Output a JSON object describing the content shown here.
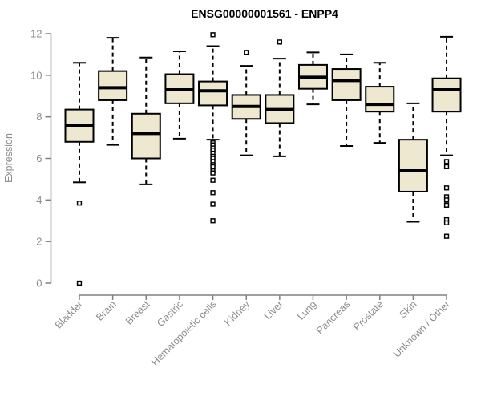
{
  "title": "ENSG00000001561 - ENPP4",
  "colors": {
    "background": "#FFFFFF",
    "box_fill": "#EDE8CF",
    "box_border": "#000000",
    "median_line": "#000000",
    "whisker": "#000000",
    "outlier_fill": "#FFFFFF",
    "outlier_border": "#000000",
    "axis": "#808080",
    "tick_label": "#8C8C8C",
    "title_color": "#000000"
  },
  "chart_data": {
    "type": "boxplot",
    "title": "ENSG00000001561 - ENPP4",
    "xlabel": "",
    "ylabel": "Expression",
    "ylim": [
      0,
      12
    ],
    "yticks": [
      0,
      2,
      4,
      6,
      8,
      10,
      12
    ],
    "grid": false,
    "legend": "none",
    "categories": [
      "Bladder",
      "Brain",
      "Breast",
      "Gastric",
      "Hematopoietic cells",
      "Kidney",
      "Liver",
      "Lung",
      "Pancreas",
      "Prostate",
      "Skin",
      "Unknown / Other"
    ],
    "boxes": [
      {
        "category": "Bladder",
        "whisker_low": 4.85,
        "q1": 6.8,
        "median": 7.6,
        "q3": 8.35,
        "whisker_high": 10.6,
        "outliers": [
          3.85,
          0.0
        ]
      },
      {
        "category": "Brain",
        "whisker_low": 6.65,
        "q1": 8.8,
        "median": 9.4,
        "q3": 10.2,
        "whisker_high": 11.8,
        "outliers": []
      },
      {
        "category": "Breast",
        "whisker_low": 4.75,
        "q1": 6.0,
        "median": 7.2,
        "q3": 8.15,
        "whisker_high": 10.85,
        "outliers": []
      },
      {
        "category": "Gastric",
        "whisker_low": 6.95,
        "q1": 8.65,
        "median": 9.3,
        "q3": 10.05,
        "whisker_high": 11.15,
        "outliers": []
      },
      {
        "category": "Hematopoietic cells",
        "whisker_low": 6.9,
        "q1": 8.55,
        "median": 9.25,
        "q3": 9.7,
        "whisker_high": 11.4,
        "outliers": [
          11.95,
          6.75,
          6.65,
          6.5,
          6.4,
          6.25,
          6.1,
          6.0,
          5.85,
          5.7,
          5.6,
          5.4,
          5.3,
          4.95,
          4.35,
          3.8,
          3.0
        ]
      },
      {
        "category": "Kidney",
        "whisker_low": 6.15,
        "q1": 7.9,
        "median": 8.5,
        "q3": 9.05,
        "whisker_high": 10.45,
        "outliers": [
          11.1
        ]
      },
      {
        "category": "Liver",
        "whisker_low": 6.1,
        "q1": 7.7,
        "median": 8.35,
        "q3": 9.05,
        "whisker_high": 10.8,
        "outliers": [
          11.6
        ]
      },
      {
        "category": "Lung",
        "whisker_low": 8.6,
        "q1": 9.35,
        "median": 9.9,
        "q3": 10.5,
        "whisker_high": 11.1,
        "outliers": []
      },
      {
        "category": "Pancreas",
        "whisker_low": 6.6,
        "q1": 8.8,
        "median": 9.75,
        "q3": 10.3,
        "whisker_high": 11.0,
        "outliers": []
      },
      {
        "category": "Prostate",
        "whisker_low": 6.75,
        "q1": 8.25,
        "median": 8.6,
        "q3": 9.45,
        "whisker_high": 10.6,
        "outliers": []
      },
      {
        "category": "Skin",
        "whisker_low": 2.95,
        "q1": 4.4,
        "median": 5.4,
        "q3": 6.9,
        "whisker_high": 8.65,
        "outliers": []
      },
      {
        "category": "Unknown / Other",
        "whisker_low": 6.15,
        "q1": 8.25,
        "median": 9.3,
        "q3": 9.85,
        "whisker_high": 11.85,
        "outliers": [
          5.85,
          5.6,
          4.58,
          4.15,
          4.0,
          3.75,
          3.05,
          2.9,
          2.25
        ]
      }
    ]
  }
}
